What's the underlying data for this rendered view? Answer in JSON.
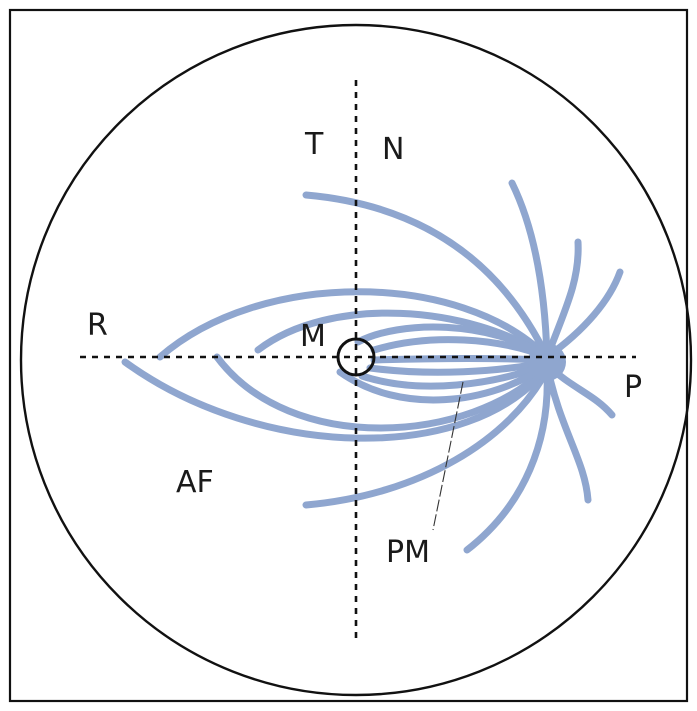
{
  "colors": {
    "fiber": "#8fa6cf",
    "line": "#111111",
    "background": "#ffffff"
  },
  "labels": {
    "t": "T",
    "n": "N",
    "r": "R",
    "m": "M",
    "p": "P",
    "af": "AF",
    "pm": "PM"
  }
}
